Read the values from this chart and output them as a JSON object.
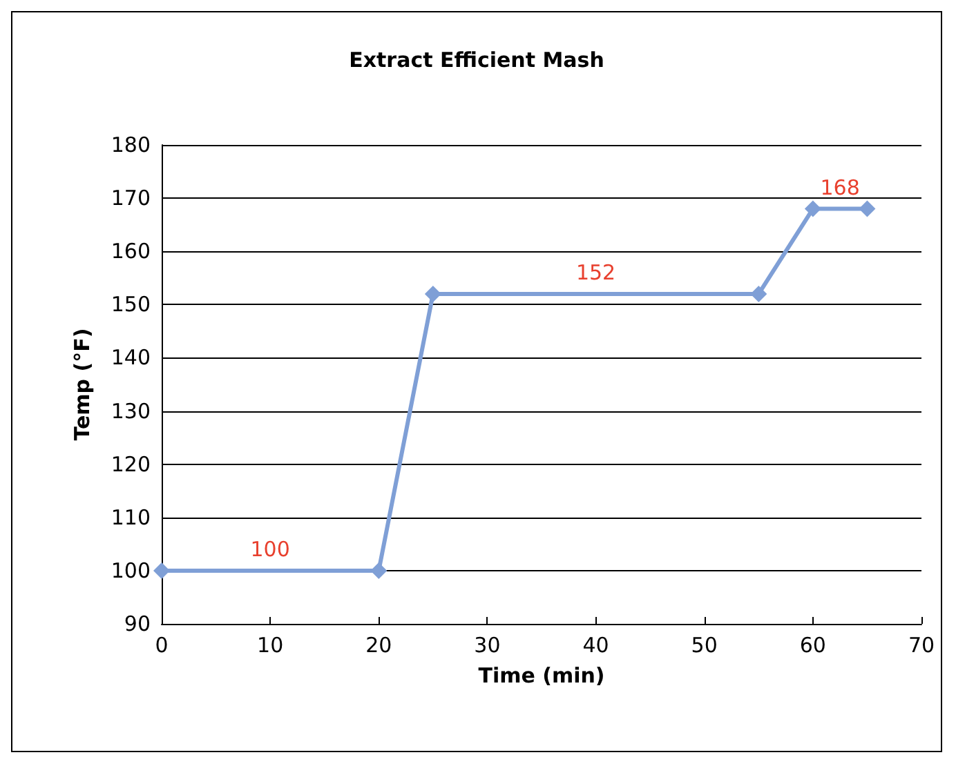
{
  "chart_data": {
    "type": "line",
    "title": "Extract Efficient Mash",
    "xlabel": "Time (min)",
    "ylabel": "Temp (°F)",
    "x": [
      0,
      20,
      25,
      55,
      60,
      65
    ],
    "series": [
      {
        "color": "#7f9fd6",
        "values": [
          100,
          100,
          152,
          152,
          168,
          168
        ]
      }
    ],
    "xlim": [
      0,
      70
    ],
    "xticks": [
      0,
      10,
      20,
      30,
      40,
      50,
      60,
      70
    ],
    "ylim": [
      90,
      180
    ],
    "yticks": [
      90,
      100,
      110,
      120,
      130,
      140,
      150,
      160,
      170,
      180
    ],
    "grid": "y",
    "marker": "diamond",
    "line_style": "solid",
    "annotations": [
      {
        "text": "100",
        "x": 10,
        "y": 100
      },
      {
        "text": "152",
        "x": 40,
        "y": 152
      },
      {
        "text": "168",
        "x": 62.5,
        "y": 168
      }
    ]
  }
}
